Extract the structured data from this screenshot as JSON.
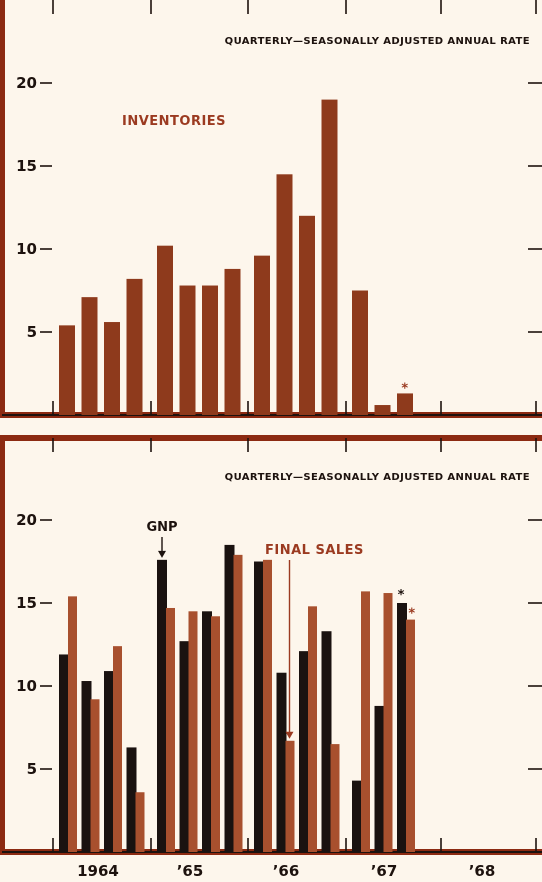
{
  "colors": {
    "background": "#fdf6ec",
    "frame": "#8c2a12",
    "ink": "#1d120e",
    "inventories": "#8e3a1c",
    "gnp": "#1a1210",
    "final_sales": "#a8502e",
    "annotation_red": "#9b3a20"
  },
  "chart_data": [
    {
      "type": "bar",
      "subtitle": "QUARTERLY—SEASONALLY ADJUSTED ANNUAL RATE",
      "ylim": [
        0,
        24
      ],
      "yticks": [
        5,
        10,
        15,
        20
      ],
      "ytick_labels": [
        "5",
        "10",
        "15",
        "20"
      ],
      "grid": false,
      "quarters": [
        "1964 Q1",
        "1964 Q2",
        "1964 Q3",
        "1964 Q4",
        "1965 Q1",
        "1965 Q2",
        "1965 Q3",
        "1965 Q4",
        "1966 Q1",
        "1966 Q2",
        "1966 Q3",
        "1966 Q4",
        "1967 Q1",
        "1967 Q2",
        "1967 Q3"
      ],
      "series": [
        {
          "name": "INVENTORIES",
          "color": "#8e3a1c",
          "values": [
            5.4,
            7.1,
            5.6,
            8.2,
            10.2,
            7.8,
            7.8,
            8.8,
            9.6,
            14.5,
            12.0,
            19.0,
            7.5,
            0.6,
            1.3
          ]
        }
      ],
      "annotations": [
        {
          "text": "*",
          "quarter": "1967 Q3",
          "series": "INVENTORIES",
          "color": "#9b3a20"
        }
      ]
    },
    {
      "type": "bar",
      "subtitle": "QUARTERLY—SEASONALLY ADJUSTED ANNUAL RATE",
      "ylim": [
        0,
        24
      ],
      "yticks": [
        5,
        10,
        15,
        20
      ],
      "ytick_labels": [
        "5",
        "10",
        "15",
        "20"
      ],
      "grid": false,
      "x_labels": [
        "1964",
        "’65",
        "’66",
        "’67",
        "’68"
      ],
      "quarters": [
        "1964 Q1",
        "1964 Q2",
        "1964 Q3",
        "1964 Q4",
        "1965 Q1",
        "1965 Q2",
        "1965 Q3",
        "1965 Q4",
        "1966 Q1",
        "1966 Q2",
        "1966 Q3",
        "1966 Q4",
        "1967 Q1",
        "1967 Q2",
        "1967 Q3"
      ],
      "series": [
        {
          "name": "GNP",
          "color": "#1a1210",
          "values": [
            11.9,
            10.3,
            10.9,
            6.3,
            17.6,
            12.7,
            14.5,
            18.5,
            17.5,
            10.8,
            12.1,
            13.3,
            4.3,
            8.8,
            15.0
          ]
        },
        {
          "name": "FINAL SALES",
          "color": "#a8502e",
          "values": [
            15.4,
            9.2,
            12.4,
            3.6,
            14.7,
            14.5,
            14.2,
            17.9,
            17.6,
            6.7,
            14.8,
            6.5,
            15.7,
            15.6,
            14.0
          ]
        }
      ],
      "annotations": [
        {
          "text": "GNP",
          "quarter": "1965 Q1",
          "series": "GNP",
          "arrow": true
        },
        {
          "text": "FINAL SALES",
          "quarter": "1966 Q3",
          "series": "FINAL SALES",
          "arrow": true
        },
        {
          "text": "*",
          "quarter": "1967 Q3",
          "series": "GNP"
        },
        {
          "text": "*",
          "quarter": "1967 Q3",
          "series": "FINAL SALES"
        }
      ]
    }
  ]
}
